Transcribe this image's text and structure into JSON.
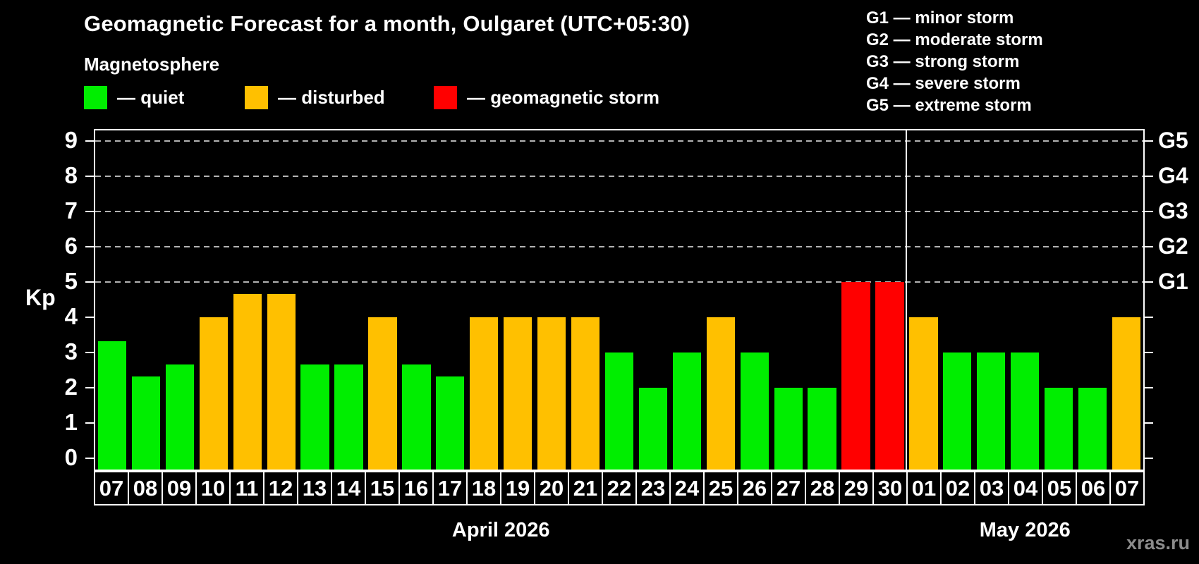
{
  "title": "Geomagnetic Forecast for a month, Oulgaret (UTC+05:30)",
  "subtitle": "Magnetosphere",
  "status_legend": {
    "items": [
      {
        "key": "quiet",
        "label": "— quiet",
        "color": "#00ee00"
      },
      {
        "key": "disturbed",
        "label": "— disturbed",
        "color": "#ffc000"
      },
      {
        "key": "storm",
        "label": "— geomagnetic storm",
        "color": "#ff0000"
      }
    ]
  },
  "g_legend": {
    "items": [
      "G1 — minor storm",
      "G2 — moderate storm",
      "G3 — strong storm",
      "G4 — severe storm",
      "G5 — extreme storm"
    ]
  },
  "watermark": "xras.ru",
  "chart_data": {
    "type": "bar",
    "title": "Geomagnetic Forecast for a month, Oulgaret (UTC+05:30)",
    "ylabel": "Kp",
    "ylim": [
      0,
      9
    ],
    "y_ticks": [
      0,
      1,
      2,
      3,
      4,
      5,
      6,
      7,
      8,
      9
    ],
    "grid": "horizontal dashed lines at Kp 5..9 only",
    "legend_position": "top",
    "right_axis_labels": [
      {
        "value": 5,
        "label": "G1"
      },
      {
        "value": 6,
        "label": "G2"
      },
      {
        "value": 7,
        "label": "G3"
      },
      {
        "value": 8,
        "label": "G4"
      },
      {
        "value": 9,
        "label": "G5"
      }
    ],
    "categories": [
      "07",
      "08",
      "09",
      "10",
      "11",
      "12",
      "13",
      "14",
      "15",
      "16",
      "17",
      "18",
      "19",
      "20",
      "21",
      "22",
      "23",
      "24",
      "25",
      "26",
      "27",
      "28",
      "29",
      "30",
      "01",
      "02",
      "03",
      "04",
      "05",
      "06",
      "07"
    ],
    "values": [
      3.33,
      2.33,
      2.67,
      4,
      4.67,
      4.67,
      2.67,
      2.67,
      4,
      2.67,
      2.33,
      4,
      4,
      4,
      4,
      3,
      2,
      3,
      4,
      3,
      2,
      2,
      5,
      5,
      4,
      3,
      3,
      3,
      2,
      2,
      4
    ],
    "statuses": [
      "quiet",
      "quiet",
      "quiet",
      "disturbed",
      "disturbed",
      "disturbed",
      "quiet",
      "quiet",
      "disturbed",
      "quiet",
      "quiet",
      "disturbed",
      "disturbed",
      "disturbed",
      "disturbed",
      "quiet",
      "quiet",
      "quiet",
      "disturbed",
      "quiet",
      "quiet",
      "quiet",
      "storm",
      "storm",
      "disturbed",
      "quiet",
      "quiet",
      "quiet",
      "quiet",
      "quiet",
      "disturbed"
    ],
    "colors": {
      "quiet": "#00ee00",
      "disturbed": "#ffc000",
      "storm": "#ff0000"
    },
    "months": [
      {
        "label": "April 2026",
        "days": 24
      },
      {
        "label": "May 2026",
        "days": 7
      }
    ],
    "month_separator_after_index": 23
  }
}
